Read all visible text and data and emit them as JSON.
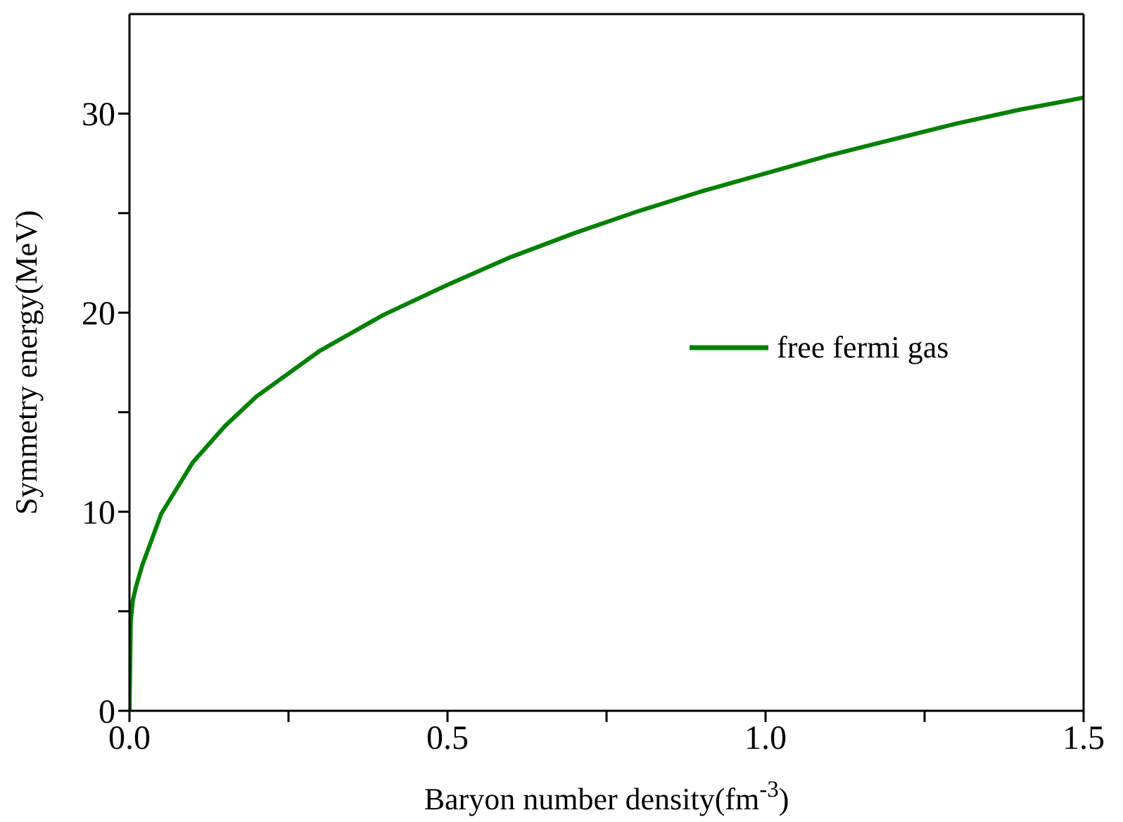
{
  "chart_data": {
    "type": "line",
    "xlabel": "Baryon number density(fm$^{-3}$)",
    "ylabel": "Symmetry energy(MeV)",
    "x": [
      0,
      0.002,
      0.005,
      0.01,
      0.02,
      0.05,
      0.1,
      0.15,
      0.2,
      0.3,
      0.4,
      0.5,
      0.6,
      0.7,
      0.8,
      0.9,
      1.0,
      1.1,
      1.2,
      1.3,
      1.4,
      1.5
    ],
    "series": [
      {
        "name": "free fermi gas",
        "color": "#008000",
        "values": [
          0,
          4.5,
          5.5,
          6.2,
          7.3,
          9.9,
          12.5,
          14.3,
          15.8,
          18.1,
          19.9,
          21.4,
          22.8,
          24.0,
          25.1,
          26.1,
          27.0,
          27.9,
          28.7,
          29.5,
          30.2,
          30.8
        ]
      }
    ],
    "xlim": [
      0,
      1.5
    ],
    "xticks": [
      {
        "value": 0,
        "label": "0.0"
      },
      {
        "value": 0.25,
        "label": null
      },
      {
        "value": 0.5,
        "label": "0.5"
      },
      {
        "value": 0.75,
        "label": null
      },
      {
        "value": 1,
        "label": "1.0"
      },
      {
        "value": 1.25,
        "label": null
      },
      {
        "value": 1.5,
        "label": "1.5"
      }
    ],
    "ylim": [
      0,
      35
    ],
    "yticks": [
      0,
      {
        "value": 5,
        "label": null
      },
      10,
      {
        "value": 15,
        "label": null
      },
      20,
      {
        "value": 25,
        "label": null
      },
      30
    ],
    "grid": false,
    "legend": "right",
    "marker": "none",
    "line_style": "solid"
  }
}
